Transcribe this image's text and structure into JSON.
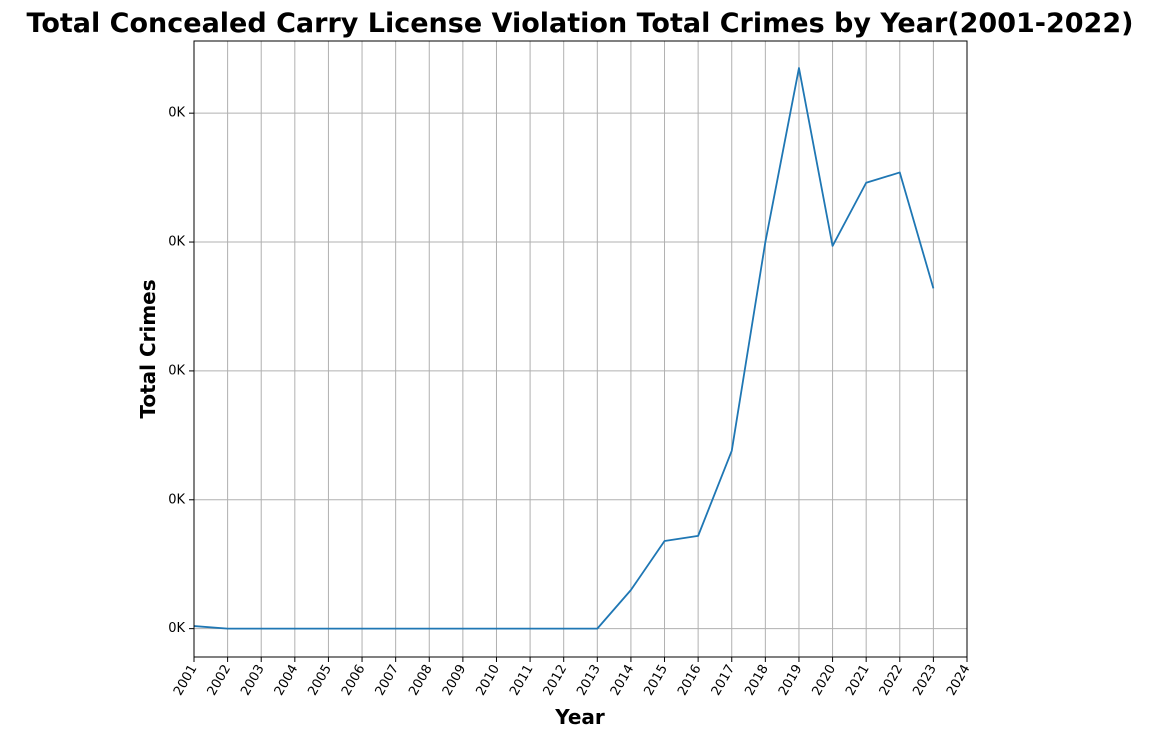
{
  "chart_data": {
    "type": "line",
    "title": "Total Concealed Carry License Violation Total Crimes by Year(2001-2022)",
    "xlabel": "Year",
    "ylabel": "Total Crimes",
    "x_ticks": [
      "2001",
      "2002",
      "2003",
      "2004",
      "2005",
      "2006",
      "2007",
      "2008",
      "2009",
      "2010",
      "2011",
      "2012",
      "2013",
      "2014",
      "2015",
      "2016",
      "2017",
      "2018",
      "2019",
      "2020",
      "2021",
      "2022",
      "2023",
      "2024"
    ],
    "y_ticks": [
      {
        "value": 0,
        "label": "0K"
      },
      {
        "value": 100,
        "label": "0K"
      },
      {
        "value": 200,
        "label": "0K"
      },
      {
        "value": 300,
        "label": "0K"
      },
      {
        "value": 400,
        "label": "0K"
      }
    ],
    "xlim": [
      2001,
      2024
    ],
    "ylim": [
      -22,
      456
    ],
    "grid": true,
    "series": [
      {
        "color": "#1f77b4",
        "x": [
          2001,
          2002,
          2003,
          2004,
          2005,
          2006,
          2007,
          2008,
          2009,
          2010,
          2011,
          2012,
          2013,
          2014,
          2015,
          2016,
          2017,
          2018,
          2019,
          2020,
          2021,
          2022,
          2023
        ],
        "y": [
          2,
          0,
          0,
          0,
          0,
          0,
          0,
          0,
          0,
          0,
          0,
          0,
          0,
          30,
          68,
          72,
          138,
          300,
          435,
          297,
          346,
          354,
          264
        ]
      }
    ]
  }
}
